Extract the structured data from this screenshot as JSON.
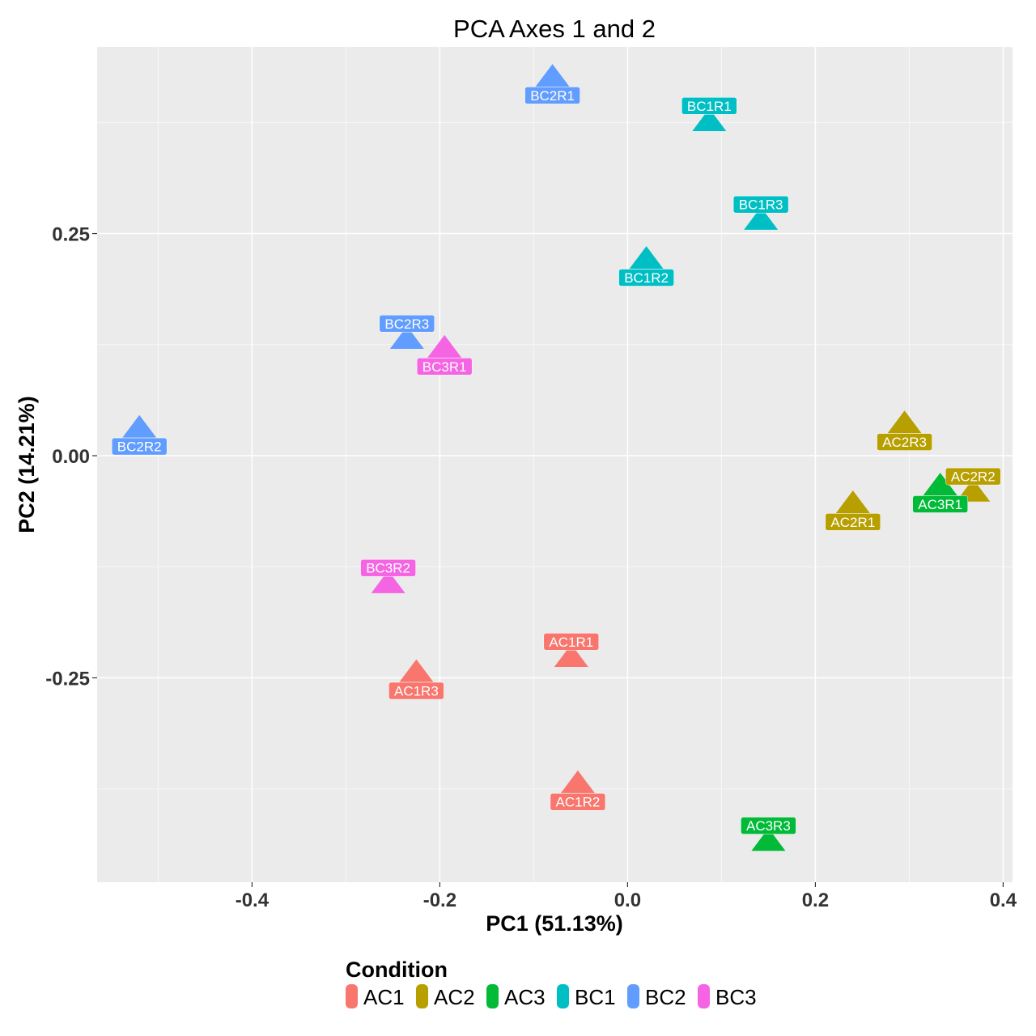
{
  "chart_data": {
    "type": "scatter",
    "title": "PCA Axes 1 and 2",
    "xlabel": "PC1 (51.13%)",
    "ylabel": "PC2 (14.21%)",
    "xlim": [
      -0.565,
      0.41
    ],
    "ylim": [
      -0.48,
      0.46
    ],
    "xticks": [
      -0.4,
      -0.2,
      0.0,
      0.2,
      0.4
    ],
    "xtick_labels": [
      "-0.4",
      "-0.2",
      "0.0",
      "0.2",
      "0.4"
    ],
    "yticks": [
      -0.25,
      0.0,
      0.25
    ],
    "ytick_labels": [
      "-0.25",
      "0.00",
      "0.25"
    ],
    "grid": true,
    "legend": {
      "title": "Condition",
      "placement": "bottom",
      "entries": [
        {
          "name": "AC1",
          "color": "#F8766D"
        },
        {
          "name": "AC2",
          "color": "#B79F00"
        },
        {
          "name": "AC3",
          "color": "#00BA38"
        },
        {
          "name": "BC1",
          "color": "#00BFC4"
        },
        {
          "name": "BC2",
          "color": "#619CFF"
        },
        {
          "name": "BC3",
          "color": "#F564E3"
        }
      ]
    },
    "points": [
      {
        "label": "BC2R1",
        "group": "BC2",
        "x": -0.08,
        "y": 0.425,
        "label_pos": "below"
      },
      {
        "label": "BC1R1",
        "group": "BC1",
        "x": 0.087,
        "y": 0.375,
        "label_pos": "above"
      },
      {
        "label": "BC1R3",
        "group": "BC1",
        "x": 0.142,
        "y": 0.264,
        "label_pos": "above"
      },
      {
        "label": "BC1R2",
        "group": "BC1",
        "x": 0.02,
        "y": 0.22,
        "label_pos": "below"
      },
      {
        "label": "BC2R3",
        "group": "BC2",
        "x": -0.235,
        "y": 0.13,
        "label_pos": "above"
      },
      {
        "label": "BC3R1",
        "group": "BC3",
        "x": -0.195,
        "y": 0.12,
        "label_pos": "below"
      },
      {
        "label": "BC2R2",
        "group": "BC2",
        "x": -0.52,
        "y": 0.03,
        "label_pos": "below"
      },
      {
        "label": "AC2R3",
        "group": "AC2",
        "x": 0.295,
        "y": 0.035,
        "label_pos": "below"
      },
      {
        "label": "AC2R2",
        "group": "AC2",
        "x": 0.368,
        "y": -0.042,
        "label_pos": "above"
      },
      {
        "label": "AC3R1",
        "group": "AC3",
        "x": 0.333,
        "y": -0.035,
        "label_pos": "below"
      },
      {
        "label": "AC2R1",
        "group": "AC2",
        "x": 0.24,
        "y": -0.055,
        "label_pos": "below"
      },
      {
        "label": "BC3R2",
        "group": "BC3",
        "x": -0.255,
        "y": -0.145,
        "label_pos": "above"
      },
      {
        "label": "AC1R1",
        "group": "AC1",
        "x": -0.06,
        "y": -0.228,
        "label_pos": "above"
      },
      {
        "label": "AC1R3",
        "group": "AC1",
        "x": -0.225,
        "y": -0.245,
        "label_pos": "below"
      },
      {
        "label": "AC1R2",
        "group": "AC1",
        "x": -0.053,
        "y": -0.37,
        "label_pos": "below"
      },
      {
        "label": "AC3R3",
        "group": "AC3",
        "x": 0.15,
        "y": -0.435,
        "label_pos": "above"
      }
    ]
  }
}
